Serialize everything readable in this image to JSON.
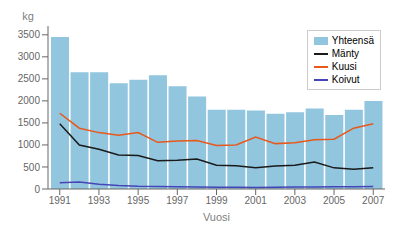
{
  "chart_data": {
    "type": "bar",
    "xlabel": "Vuosi",
    "ylabel": "kg",
    "x": [
      1991,
      1992,
      1993,
      1994,
      1995,
      1996,
      1997,
      1998,
      1999,
      2000,
      2001,
      2002,
      2003,
      2004,
      2005,
      2006,
      2007
    ],
    "series": [
      {
        "name": "Yhteensä",
        "type": "bar",
        "color": "#92c5de",
        "values": [
          3450,
          2650,
          2650,
          2400,
          2480,
          2580,
          2330,
          2100,
          1800,
          1800,
          1780,
          1710,
          1740,
          1830,
          1680,
          1800,
          2000
        ]
      },
      {
        "name": "Mänty",
        "type": "line",
        "color": "#1a1a1a",
        "values": [
          1480,
          1000,
          900,
          770,
          760,
          640,
          650,
          680,
          540,
          530,
          480,
          520,
          540,
          610,
          480,
          450,
          480
        ]
      },
      {
        "name": "Kuusi",
        "type": "line",
        "color": "#e8581a",
        "values": [
          1720,
          1380,
          1280,
          1220,
          1280,
          1060,
          1090,
          1100,
          990,
          1000,
          1180,
          1030,
          1050,
          1120,
          1130,
          1380,
          1480
        ]
      },
      {
        "name": "Koivut",
        "type": "line",
        "color": "#4545b8",
        "values": [
          140,
          160,
          110,
          80,
          60,
          55,
          50,
          45,
          40,
          40,
          35,
          40,
          45,
          45,
          50,
          50,
          55
        ]
      }
    ],
    "xlim": [
      1990.4,
      2007.6
    ],
    "xticks": [
      1991,
      1993,
      1995,
      1997,
      1999,
      2001,
      2003,
      2005,
      2007
    ],
    "ylim": [
      0,
      3700
    ],
    "yticks": [
      0,
      500,
      1000,
      1500,
      2000,
      2500,
      3000,
      3500
    ],
    "grid": false,
    "legend": "upper right"
  }
}
